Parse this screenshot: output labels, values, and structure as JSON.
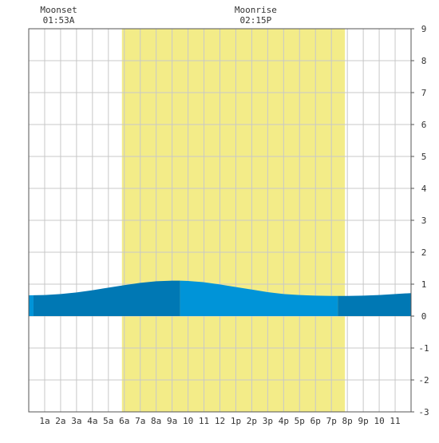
{
  "chart_data": {
    "type": "area",
    "title": "",
    "xlabel": "",
    "ylabel": "",
    "xlim": [
      0,
      24
    ],
    "ylim": [
      -3,
      9
    ],
    "grid": true,
    "x_ticks": [
      {
        "x": 1,
        "label": "1a"
      },
      {
        "x": 2,
        "label": "2a"
      },
      {
        "x": 3,
        "label": "3a"
      },
      {
        "x": 4,
        "label": "4a"
      },
      {
        "x": 5,
        "label": "5a"
      },
      {
        "x": 6,
        "label": "6a"
      },
      {
        "x": 7,
        "label": "7a"
      },
      {
        "x": 8,
        "label": "8a"
      },
      {
        "x": 9,
        "label": "9a"
      },
      {
        "x": 10,
        "label": "10"
      },
      {
        "x": 11,
        "label": "11"
      },
      {
        "x": 12,
        "label": "12"
      },
      {
        "x": 13,
        "label": "1p"
      },
      {
        "x": 14,
        "label": "2p"
      },
      {
        "x": 15,
        "label": "3p"
      },
      {
        "x": 16,
        "label": "4p"
      },
      {
        "x": 17,
        "label": "5p"
      },
      {
        "x": 18,
        "label": "6p"
      },
      {
        "x": 19,
        "label": "7p"
      },
      {
        "x": 20,
        "label": "8p"
      },
      {
        "x": 21,
        "label": "9p"
      },
      {
        "x": 22,
        "label": "10"
      },
      {
        "x": 23,
        "label": "11"
      }
    ],
    "y_ticks": [
      -3,
      -2,
      -1,
      0,
      1,
      2,
      3,
      4,
      5,
      6,
      7,
      8,
      9
    ],
    "daylight": {
      "start": 5.85,
      "end": 19.85,
      "color": "#f3ec88"
    },
    "tide_series": {
      "x": [
        0,
        1,
        2,
        3,
        4,
        5,
        6,
        7,
        8,
        9,
        9.5,
        10,
        11,
        12,
        13,
        14,
        15,
        16,
        17,
        18,
        19,
        19.4,
        20,
        21,
        22,
        23,
        24
      ],
      "y": [
        0.65,
        0.66,
        0.69,
        0.74,
        0.81,
        0.89,
        0.97,
        1.04,
        1.09,
        1.11,
        1.11,
        1.1,
        1.06,
        0.99,
        0.91,
        0.83,
        0.75,
        0.69,
        0.66,
        0.64,
        0.63,
        0.63,
        0.63,
        0.64,
        0.66,
        0.69,
        0.72
      ]
    },
    "tide_segments": [
      {
        "start": 0,
        "end": 0.3,
        "color": "#0094d8"
      },
      {
        "start": 0.3,
        "end": 9.5,
        "color": "#0078b4"
      },
      {
        "start": 9.5,
        "end": 19.4,
        "color": "#0094d8"
      },
      {
        "start": 19.4,
        "end": 24,
        "color": "#0078b4"
      }
    ],
    "annotations": [
      {
        "title": "Moonset",
        "time": "01:53A",
        "x": 1.88
      },
      {
        "title": "Moonrise",
        "time": "02:15P",
        "x": 14.25
      }
    ]
  }
}
